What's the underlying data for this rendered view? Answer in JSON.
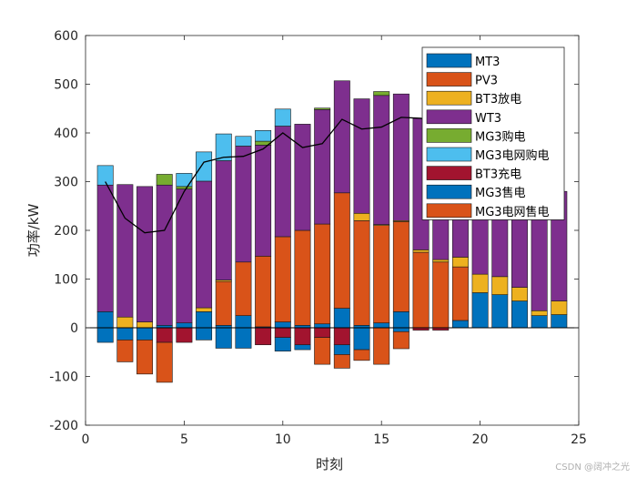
{
  "chart_data": {
    "type": "bar",
    "stacked": true,
    "xlabel": "时刻",
    "ylabel": "功率/kW",
    "xlim": [
      0,
      25
    ],
    "ylim": [
      -200,
      600
    ],
    "xticks": [
      0,
      5,
      10,
      15,
      20,
      25
    ],
    "yticks": [
      -200,
      -100,
      0,
      100,
      200,
      300,
      400,
      500,
      600
    ],
    "grid": false,
    "legend_position": "top-right",
    "x": [
      1,
      2,
      3,
      4,
      5,
      6,
      7,
      8,
      9,
      10,
      11,
      12,
      13,
      14,
      15,
      16,
      17,
      18,
      19,
      20,
      21,
      22,
      23,
      24
    ],
    "positive_series": [
      {
        "name": "MT3",
        "color": "#0072BD",
        "values": [
          33,
          0,
          0,
          5,
          10,
          33,
          5,
          25,
          2,
          12,
          5,
          8,
          40,
          5,
          10,
          33,
          0,
          0,
          15,
          72,
          68,
          55,
          25,
          27
        ]
      },
      {
        "name": "PV3",
        "color": "#D95319",
        "values": [
          0,
          0,
          0,
          0,
          0,
          0,
          90,
          110,
          145,
          175,
          195,
          205,
          237,
          215,
          200,
          185,
          155,
          135,
          110,
          0,
          0,
          0,
          0,
          0
        ]
      },
      {
        "name": "BT3放电",
        "color": "#EDB120",
        "values": [
          0,
          22,
          12,
          0,
          0,
          8,
          3,
          0,
          0,
          0,
          0,
          0,
          0,
          15,
          2,
          2,
          5,
          5,
          20,
          38,
          37,
          28,
          10,
          28
        ]
      },
      {
        "name": "WT3",
        "color": "#7E2F8E",
        "values": [
          260,
          272,
          278,
          288,
          275,
          260,
          245,
          238,
          228,
          227,
          218,
          235,
          230,
          235,
          265,
          260,
          270,
          165,
          165,
          210,
          225,
          205,
          230,
          225
        ]
      },
      {
        "name": "MG3购电",
        "color": "#77AC30",
        "values": [
          0,
          0,
          0,
          22,
          5,
          0,
          0,
          0,
          8,
          0,
          0,
          3,
          0,
          0,
          8,
          0,
          0,
          0,
          0,
          0,
          0,
          0,
          0,
          0
        ]
      },
      {
        "name": "MG3电网购电",
        "color": "#4DBEEE",
        "values": [
          40,
          0,
          0,
          0,
          27,
          60,
          55,
          20,
          22,
          35,
          0,
          0,
          0,
          0,
          0,
          0,
          0,
          0,
          0,
          0,
          0,
          0,
          0,
          0
        ]
      }
    ],
    "negative_series": [
      {
        "name": "BT3充电",
        "color": "#A2142F",
        "values": [
          0,
          0,
          0,
          -30,
          -30,
          0,
          0,
          0,
          -35,
          -20,
          -35,
          -20,
          -35,
          0,
          0,
          0,
          -5,
          -5,
          0,
          0,
          0,
          0,
          0,
          0
        ]
      },
      {
        "name": "MG3售电",
        "color": "#0072BD",
        "values": [
          -30,
          -25,
          -25,
          0,
          0,
          -25,
          -42,
          -42,
          0,
          -28,
          -10,
          0,
          -20,
          -45,
          0,
          -8,
          0,
          0,
          0,
          0,
          0,
          0,
          0,
          0
        ]
      },
      {
        "name": "MG3电网售电",
        "color": "#D95319",
        "values": [
          0,
          -45,
          -70,
          -82,
          0,
          0,
          0,
          0,
          0,
          0,
          0,
          -55,
          -28,
          -22,
          -75,
          -35,
          0,
          0,
          0,
          0,
          0,
          0,
          0,
          0
        ]
      }
    ],
    "load_line": {
      "color": "#000000",
      "values": [
        300,
        225,
        195,
        200,
        280,
        340,
        350,
        352,
        367,
        400,
        370,
        378,
        428,
        408,
        412,
        432,
        430,
        418,
        400,
        345,
        330,
        340,
        372,
        358
      ]
    },
    "legend": [
      "MT3",
      "PV3",
      "BT3放电",
      "WT3",
      "MG3购电",
      "MG3电网购电",
      "BT3充电",
      "MG3售电",
      "MG3电网售电"
    ]
  },
  "watermark": "CSDN @阔冲之光"
}
